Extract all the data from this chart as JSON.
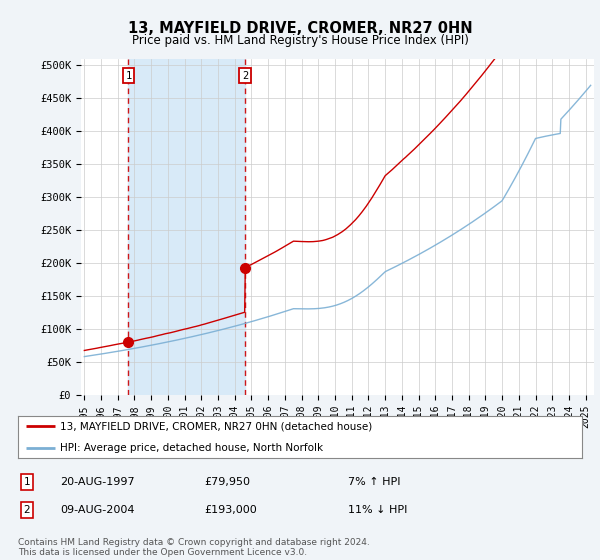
{
  "title": "13, MAYFIELD DRIVE, CROMER, NR27 0HN",
  "subtitle": "Price paid vs. HM Land Registry's House Price Index (HPI)",
  "ylabel_ticks": [
    "£0",
    "£50K",
    "£100K",
    "£150K",
    "£200K",
    "£250K",
    "£300K",
    "£350K",
    "£400K",
    "£450K",
    "£500K"
  ],
  "ytick_values": [
    0,
    50000,
    100000,
    150000,
    200000,
    250000,
    300000,
    350000,
    400000,
    450000,
    500000
  ],
  "ylim": [
    0,
    510000
  ],
  "xlim_start": 1994.8,
  "xlim_end": 2025.5,
  "hpi_color": "#7bafd4",
  "hpi_fill_color": "#d0e4f5",
  "price_color": "#cc0000",
  "sale1_x": 1997.64,
  "sale1_y": 79950,
  "sale2_x": 2004.61,
  "sale2_y": 193000,
  "marker1_label": "1",
  "marker2_label": "2",
  "legend_line1": "13, MAYFIELD DRIVE, CROMER, NR27 0HN (detached house)",
  "legend_line2": "HPI: Average price, detached house, North Norfolk",
  "table_row1_num": "1",
  "table_row1_date": "20-AUG-1997",
  "table_row1_price": "£79,950",
  "table_row1_hpi": "7% ↑ HPI",
  "table_row2_num": "2",
  "table_row2_date": "09-AUG-2004",
  "table_row2_price": "£193,000",
  "table_row2_hpi": "11% ↓ HPI",
  "footer": "Contains HM Land Registry data © Crown copyright and database right 2024.\nThis data is licensed under the Open Government Licence v3.0.",
  "background_color": "#f0f4f8",
  "plot_bg_color": "#ffffff",
  "grid_color": "#cccccc",
  "dashed_line_color": "#cc0000",
  "shade_color": "#d8eaf8"
}
